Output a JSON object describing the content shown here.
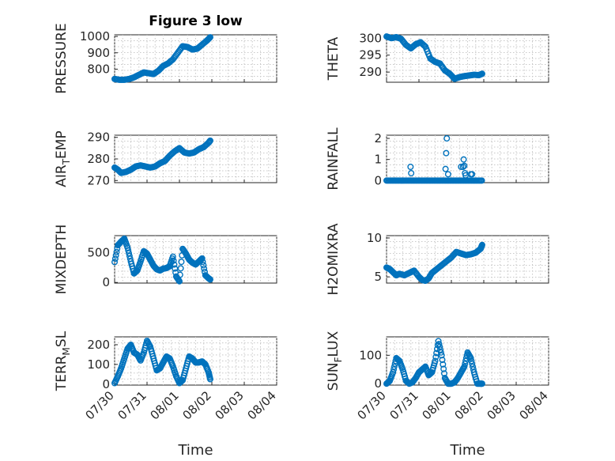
{
  "figure_title": "Figure 3 low",
  "marker_color": "#0072BD",
  "chart_data": [
    {
      "type": "scatter",
      "title": "Figure 3 low",
      "xlabel": "",
      "ylabel": "PRESSURE",
      "ylabel_sub": "",
      "ylim": [
        720,
        1010
      ],
      "yticks": [
        800,
        900,
        1000
      ],
      "xlim": [
        "07/30",
        "08/04"
      ],
      "xticks": [
        "07/30",
        "07/31",
        "08/01",
        "08/02",
        "08/03",
        "08/04"
      ],
      "show_xticklabels": false,
      "grid": true,
      "series": [
        {
          "x": [
            0,
            0.15,
            0.3,
            0.45,
            0.6,
            0.75,
            0.9,
            1.05,
            1.2,
            1.35,
            1.5,
            1.65,
            1.8,
            1.95,
            2.1,
            2.25,
            2.4,
            2.55,
            2.7,
            2.85,
            2.95
          ],
          "y": [
            740,
            735,
            735,
            740,
            750,
            765,
            780,
            775,
            770,
            790,
            820,
            835,
            860,
            900,
            940,
            935,
            920,
            925,
            950,
            975,
            995
          ]
        }
      ]
    },
    {
      "type": "scatter",
      "title": "",
      "xlabel": "",
      "ylabel": "THETA",
      "ylabel_sub": "",
      "ylim": [
        287,
        301
      ],
      "yticks": [
        290,
        295,
        300
      ],
      "xlim": [
        "07/30",
        "08/04"
      ],
      "xticks": [
        "07/30",
        "07/31",
        "08/01",
        "08/02",
        "08/03",
        "08/04"
      ],
      "show_xticklabels": false,
      "grid": true,
      "series": [
        {
          "x": [
            0,
            0.15,
            0.3,
            0.45,
            0.6,
            0.75,
            0.9,
            1.05,
            1.2,
            1.35,
            1.5,
            1.65,
            1.8,
            1.95,
            2.1,
            2.25,
            2.4,
            2.55,
            2.7,
            2.85,
            2.95
          ],
          "y": [
            300.5,
            300,
            300.3,
            299.8,
            298,
            297,
            298.2,
            298.8,
            297.5,
            294,
            293,
            292.5,
            290.5,
            289.5,
            288,
            288.5,
            288.8,
            289,
            289.2,
            289.1,
            289.5
          ]
        }
      ]
    },
    {
      "type": "scatter",
      "title": "",
      "xlabel": "",
      "ylabel": "AIR",
      "ylabel_sub": "T",
      "ylabel_rest": "EMP",
      "ylim": [
        269,
        291
      ],
      "yticks": [
        270,
        280,
        290
      ],
      "xlim": [
        "07/30",
        "08/04"
      ],
      "xticks": [
        "07/30",
        "07/31",
        "08/01",
        "08/02",
        "08/03",
        "08/04"
      ],
      "show_xticklabels": false,
      "grid": true,
      "series": [
        {
          "x": [
            0,
            0.1,
            0.2,
            0.35,
            0.5,
            0.65,
            0.8,
            0.95,
            1.1,
            1.25,
            1.4,
            1.55,
            1.7,
            1.85,
            2.0,
            2.15,
            2.3,
            2.45,
            2.6,
            2.75,
            2.9,
            2.95
          ],
          "y": [
            276,
            275,
            273.5,
            274,
            275,
            276.5,
            277,
            276.5,
            276,
            276.5,
            278,
            279,
            281.5,
            283.5,
            285,
            283,
            282.5,
            283,
            284.5,
            285.5,
            287.5,
            288.5
          ]
        }
      ]
    },
    {
      "type": "scatter",
      "title": "",
      "xlabel": "",
      "ylabel": "RAINFALL",
      "ylabel_sub": "",
      "ylim": [
        -0.1,
        2.15
      ],
      "yticks": [
        0,
        1,
        2
      ],
      "xlim": [
        "07/30",
        "08/04"
      ],
      "xticks": [
        "07/30",
        "07/31",
        "08/01",
        "08/02",
        "08/03",
        "08/04"
      ],
      "show_xticklabels": false,
      "grid": true,
      "series": [
        {
          "x": [
            0.74,
            0.76,
            1.82,
            1.84,
            1.86,
            1.9,
            2.3,
            2.36,
            2.38,
            2.4,
            2.42,
            2.44,
            2.6,
            2.64
          ],
          "y": [
            0.65,
            0.35,
            0.55,
            1.3,
            2.0,
            0.3,
            0.65,
            0.65,
            1.0,
            0.7,
            0.35,
            0.25,
            0.3,
            0.3
          ]
        }
      ],
      "baseline_zero": {
        "from": 0,
        "to": 2.95,
        "value": 0
      }
    },
    {
      "type": "scatter",
      "title": "",
      "xlabel": "",
      "ylabel": "MIXDEPTH",
      "ylabel_sub": "",
      "ylim": [
        -10,
        780
      ],
      "yticks": [
        0,
        500
      ],
      "xlim": [
        "07/30",
        "08/04"
      ],
      "xticks": [
        "07/30",
        "07/31",
        "08/01",
        "08/02",
        "08/03",
        "08/04"
      ],
      "show_xticklabels": false,
      "grid": true,
      "series": [
        {
          "x": [
            0,
            0.1,
            0.2,
            0.3,
            0.4,
            0.5,
            0.6,
            0.7,
            0.8,
            0.9,
            1.0,
            1.1,
            1.2,
            1.3,
            1.4,
            1.5,
            1.6,
            1.7,
            1.8,
            1.9,
            2.0,
            2.1,
            2.2,
            2.3,
            2.4,
            2.5,
            2.6,
            2.7,
            2.8,
            2.9,
            2.95
          ],
          "y": [
            340,
            620,
            680,
            730,
            580,
            350,
            150,
            200,
            350,
            520,
            480,
            380,
            280,
            220,
            200,
            230,
            240,
            270,
            430,
            100,
            20,
            560,
            480,
            380,
            330,
            300,
            350,
            400,
            120,
            70,
            50
          ]
        }
      ]
    },
    {
      "type": "scatter",
      "title": "",
      "xlabel": "",
      "ylabel": "H2OMIXRA",
      "ylabel_sub": "",
      "ylim": [
        4.2,
        10.3
      ],
      "yticks": [
        5,
        10
      ],
      "xlim": [
        "07/30",
        "08/04"
      ],
      "xticks": [
        "07/30",
        "07/31",
        "08/01",
        "08/02",
        "08/03",
        "08/04"
      ],
      "show_xticklabels": false,
      "grid": true,
      "series": [
        {
          "x": [
            0,
            0.1,
            0.2,
            0.3,
            0.4,
            0.55,
            0.7,
            0.85,
            1.0,
            1.1,
            1.2,
            1.3,
            1.4,
            1.55,
            1.7,
            1.85,
            2.0,
            2.15,
            2.3,
            2.45,
            2.6,
            2.75,
            2.9,
            2.95
          ],
          "y": [
            6.2,
            6.0,
            5.6,
            5.2,
            5.4,
            5.2,
            5.5,
            5.8,
            5.0,
            4.6,
            4.5,
            4.8,
            5.5,
            6.0,
            6.5,
            7.0,
            7.5,
            8.2,
            8.0,
            7.8,
            7.9,
            8.1,
            8.6,
            9.1
          ]
        }
      ]
    },
    {
      "type": "scatter",
      "title": "",
      "xlabel": "Time",
      "ylabel": "TERR",
      "ylabel_sub": "M",
      "ylabel_rest": "SL",
      "ylim": [
        -5,
        240
      ],
      "yticks": [
        0,
        100,
        200
      ],
      "xlim": [
        "07/30",
        "08/04"
      ],
      "xticks": [
        "07/30",
        "07/31",
        "08/01",
        "08/02",
        "08/03",
        "08/04"
      ],
      "show_xticklabels": true,
      "grid": true,
      "series": [
        {
          "x": [
            0,
            0.1,
            0.2,
            0.3,
            0.4,
            0.5,
            0.6,
            0.7,
            0.8,
            0.9,
            1.0,
            1.1,
            1.2,
            1.3,
            1.4,
            1.5,
            1.6,
            1.7,
            1.8,
            1.9,
            2.0,
            2.1,
            2.2,
            2.3,
            2.4,
            2.5,
            2.6,
            2.7,
            2.8,
            2.9,
            2.95
          ],
          "y": [
            5,
            40,
            80,
            130,
            180,
            200,
            160,
            150,
            120,
            160,
            220,
            190,
            130,
            70,
            80,
            110,
            140,
            130,
            90,
            40,
            5,
            20,
            80,
            140,
            130,
            110,
            110,
            115,
            100,
            60,
            25
          ]
        }
      ]
    },
    {
      "type": "scatter",
      "title": "",
      "xlabel": "Time",
      "ylabel": "SUN",
      "ylabel_sub": "F",
      "ylabel_rest": "LUX",
      "ylim": [
        -5,
        165
      ],
      "yticks": [
        0,
        100
      ],
      "xlim": [
        "07/30",
        "08/04"
      ],
      "xticks": [
        "07/30",
        "07/31",
        "08/01",
        "08/02",
        "08/03",
        "08/04"
      ],
      "show_xticklabels": true,
      "grid": true,
      "series": [
        {
          "x": [
            0,
            0.1,
            0.2,
            0.3,
            0.4,
            0.5,
            0.6,
            0.7,
            0.8,
            0.9,
            1.0,
            1.1,
            1.2,
            1.3,
            1.4,
            1.5,
            1.6,
            1.7,
            1.8,
            1.9,
            2.0,
            2.1,
            2.2,
            2.3,
            2.4,
            2.5,
            2.6,
            2.7,
            2.8,
            2.9,
            2.95
          ],
          "y": [
            0,
            10,
            40,
            90,
            80,
            50,
            10,
            0,
            5,
            20,
            40,
            50,
            60,
            30,
            40,
            80,
            150,
            100,
            20,
            0,
            0,
            5,
            20,
            40,
            60,
            110,
            90,
            40,
            0,
            0,
            0
          ]
        }
      ]
    }
  ]
}
